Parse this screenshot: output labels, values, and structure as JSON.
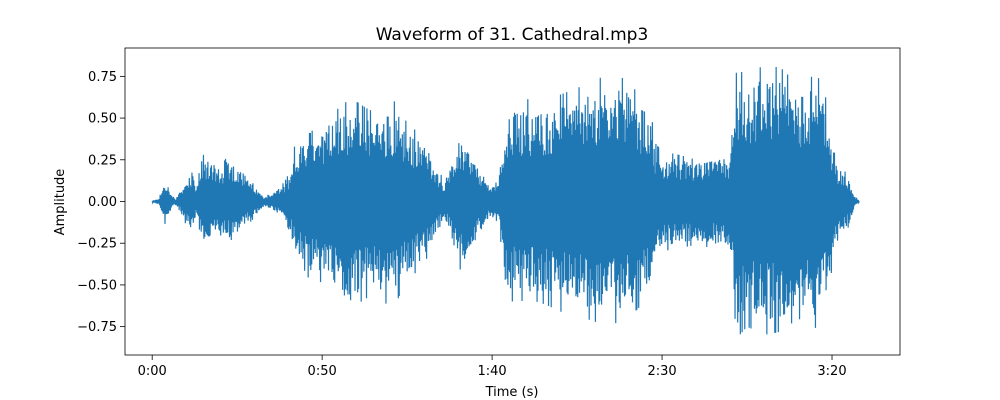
{
  "chart_data": {
    "type": "line",
    "title": "Waveform of 31. Cathedral.mp3",
    "xlabel": "Time (s)",
    "ylabel": "Amplitude",
    "xlim": [
      -8,
      220
    ],
    "ylim": [
      -0.92,
      0.92
    ],
    "x_ticks": [
      {
        "value": 0,
        "label": "0:00"
      },
      {
        "value": 50,
        "label": "0:50"
      },
      {
        "value": 100,
        "label": "1:40"
      },
      {
        "value": 150,
        "label": "2:30"
      },
      {
        "value": 200,
        "label": "3:20"
      }
    ],
    "y_ticks": [
      {
        "value": -0.75,
        "label": "−0.75"
      },
      {
        "value": -0.5,
        "label": "−0.50"
      },
      {
        "value": -0.25,
        "label": "−0.25"
      },
      {
        "value": 0.0,
        "label": "0.00"
      },
      {
        "value": 0.25,
        "label": "0.25"
      },
      {
        "value": 0.5,
        "label": "0.50"
      },
      {
        "value": 0.75,
        "label": "0.75"
      }
    ],
    "grid": false,
    "legend": "none",
    "series": [
      {
        "color": "#1f77b4",
        "envelope": {
          "time": [
            0,
            2,
            3,
            4,
            5,
            6,
            7,
            9,
            11,
            12,
            13,
            15,
            18,
            20,
            22,
            24,
            26,
            28,
            30,
            32,
            33,
            35,
            37,
            39,
            41,
            42,
            45,
            47,
            50,
            53,
            55,
            58,
            60,
            63,
            65,
            67,
            70,
            72,
            74,
            76,
            78,
            80,
            82,
            84,
            86,
            88,
            89,
            90,
            93,
            95,
            97,
            99,
            100,
            102,
            104,
            106,
            108,
            109,
            110,
            113,
            116,
            120,
            125,
            130,
            135,
            140,
            145,
            147,
            148,
            150,
            155,
            160,
            165,
            170,
            171,
            172,
            175,
            180,
            185,
            190,
            195,
            197,
            199,
            201,
            203,
            205,
            206,
            207,
            208
          ],
          "upper": [
            0.005,
            0.02,
            0.08,
            0.15,
            0.08,
            0.03,
            0.02,
            0.1,
            0.18,
            0.17,
            0.1,
            0.28,
            0.26,
            0.2,
            0.27,
            0.25,
            0.22,
            0.15,
            0.1,
            0.05,
            0.03,
            0.05,
            0.08,
            0.12,
            0.2,
            0.35,
            0.4,
            0.5,
            0.45,
            0.58,
            0.55,
            0.62,
            0.6,
            0.56,
            0.54,
            0.57,
            0.6,
            0.6,
            0.5,
            0.45,
            0.42,
            0.4,
            0.3,
            0.2,
            0.12,
            0.2,
            0.28,
            0.4,
            0.35,
            0.25,
            0.18,
            0.12,
            0.1,
            0.15,
            0.55,
            0.6,
            0.58,
            0.6,
            0.62,
            0.58,
            0.6,
            0.64,
            0.68,
            0.72,
            0.78,
            0.72,
            0.6,
            0.5,
            0.35,
            0.3,
            0.28,
            0.25,
            0.27,
            0.3,
            0.6,
            0.8,
            0.75,
            0.82,
            0.8,
            0.7,
            0.76,
            0.72,
            0.55,
            0.25,
            0.2,
            0.15,
            0.08,
            0.03,
            0.005
          ],
          "lower": [
            -0.005,
            -0.02,
            -0.08,
            -0.15,
            -0.08,
            -0.03,
            -0.02,
            -0.1,
            -0.18,
            -0.17,
            -0.1,
            -0.25,
            -0.24,
            -0.2,
            -0.25,
            -0.22,
            -0.2,
            -0.14,
            -0.1,
            -0.05,
            -0.03,
            -0.05,
            -0.08,
            -0.12,
            -0.2,
            -0.32,
            -0.42,
            -0.5,
            -0.48,
            -0.6,
            -0.6,
            -0.7,
            -0.62,
            -0.58,
            -0.56,
            -0.6,
            -0.62,
            -0.6,
            -0.5,
            -0.45,
            -0.42,
            -0.38,
            -0.28,
            -0.2,
            -0.12,
            -0.2,
            -0.28,
            -0.42,
            -0.36,
            -0.26,
            -0.18,
            -0.12,
            -0.1,
            -0.15,
            -0.58,
            -0.6,
            -0.58,
            -0.6,
            -0.62,
            -0.6,
            -0.62,
            -0.66,
            -0.68,
            -0.72,
            -0.74,
            -0.7,
            -0.6,
            -0.48,
            -0.32,
            -0.3,
            -0.28,
            -0.26,
            -0.28,
            -0.3,
            -0.6,
            -0.82,
            -0.75,
            -0.8,
            -0.78,
            -0.7,
            -0.76,
            -0.72,
            -0.55,
            -0.25,
            -0.2,
            -0.15,
            -0.08,
            -0.03,
            -0.005
          ]
        }
      }
    ]
  }
}
